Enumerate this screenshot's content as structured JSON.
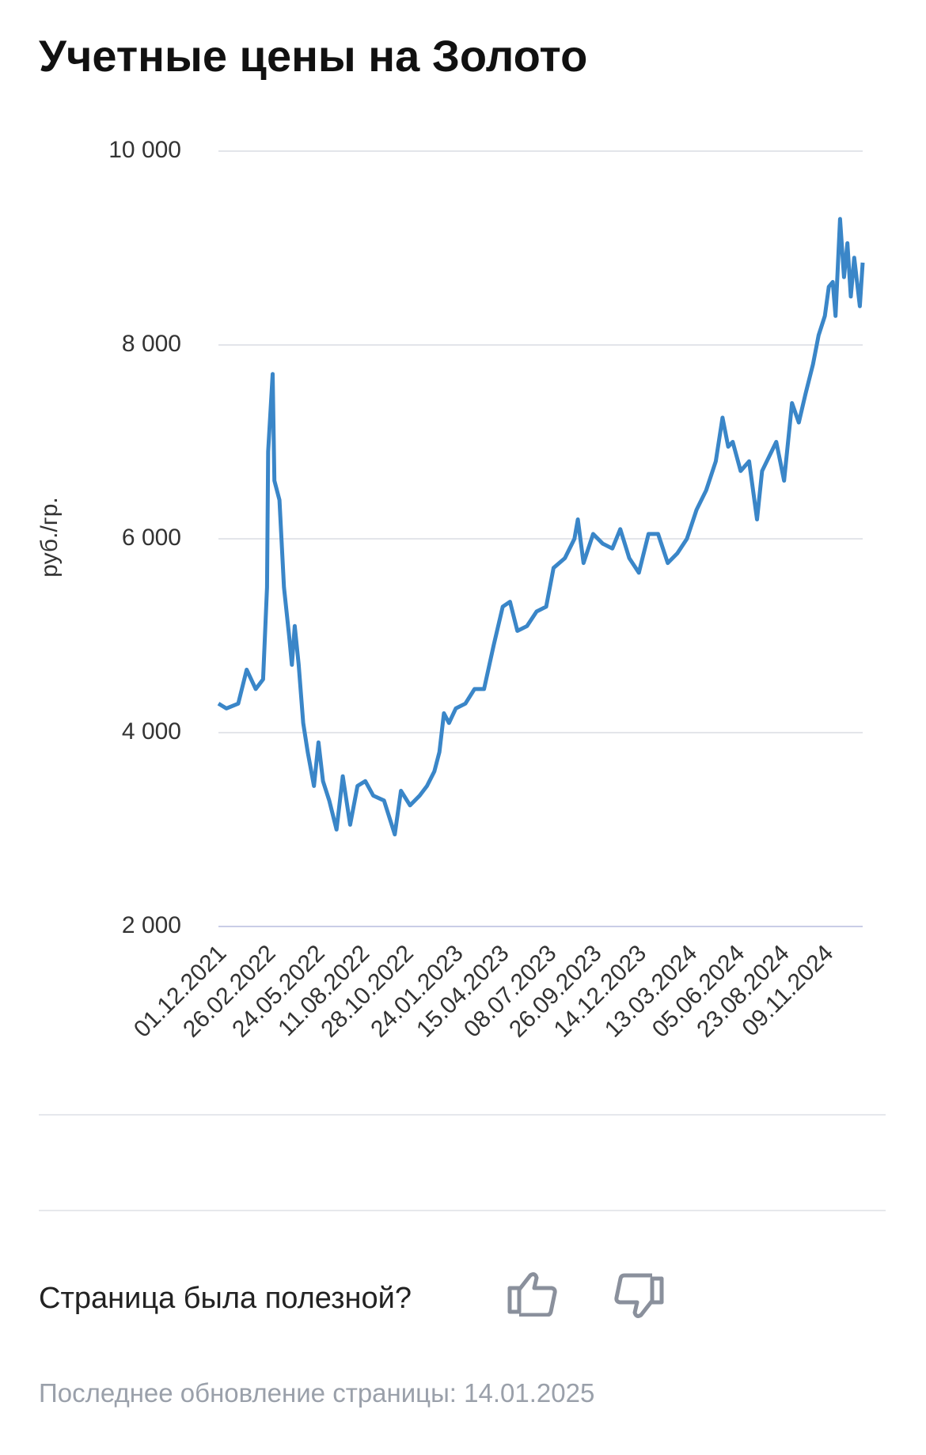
{
  "chart_data": {
    "type": "line",
    "title": "Учетные цены на Золото",
    "y_label": "руб./гр.",
    "color": "#3a86c8",
    "x": [
      "01.12.2021",
      "15.12.2021",
      "05.01.2022",
      "20.01.2022",
      "05.02.2022",
      "18.02.2022",
      "25.02.2022",
      "27.02.2022",
      "07.03.2022",
      "10.03.2022",
      "19.03.2022",
      "27.03.2022",
      "05.04.2022",
      "10.04.2022",
      "15.04.2022",
      "22.04.2022",
      "30.04.2022",
      "08.05.2022",
      "19.05.2022",
      "27.05.2022",
      "04.06.2022",
      "15.06.2022",
      "28.06.2022",
      "09.07.2022",
      "22.07.2022",
      "04.08.2022",
      "18.08.2022",
      "01.09.2022",
      "20.09.2022",
      "09.10.2022",
      "20.10.2022",
      "05.11.2022",
      "22.11.2022",
      "05.12.2022",
      "18.12.2022",
      "27.12.2022",
      "04.01.2023",
      "13.01.2023",
      "25.01.2023",
      "11.02.2023",
      "27.02.2023",
      "16.03.2023",
      "02.04.2023",
      "18.04.2023",
      "01.05.2023",
      "14.05.2023",
      "31.05.2023",
      "17.06.2023",
      "04.07.2023",
      "17.07.2023",
      "06.08.2023",
      "23.08.2023",
      "29.08.2023",
      "08.09.2023",
      "25.09.2023",
      "12.10.2023",
      "29.10.2023",
      "12.11.2023",
      "28.11.2023",
      "15.12.2023",
      "01.01.2024",
      "18.01.2024",
      "04.02.2024",
      "21.02.2024",
      "09.03.2024",
      "26.03.2024",
      "12.04.2024",
      "29.04.2024",
      "11.05.2024",
      "21.05.2024",
      "29.05.2024",
      "12.06.2024",
      "27.06.2024",
      "11.07.2024",
      "20.07.2024",
      "14.08.2024",
      "28.08.2024",
      "11.09.2024",
      "23.09.2024",
      "05.10.2024",
      "18.10.2024",
      "28.10.2024",
      "08.11.2024",
      "15.11.2024",
      "22.11.2024",
      "27.11.2024",
      "05.12.2024",
      "12.12.2024",
      "18.12.2024",
      "24.12.2024",
      "30.12.2024",
      "09.01.2025",
      "14.01.2025"
    ],
    "values": [
      4300,
      4250,
      4300,
      4650,
      4450,
      4550,
      5500,
      6900,
      7700,
      6600,
      6400,
      5500,
      5000,
      4700,
      5100,
      4700,
      4100,
      3800,
      3450,
      3900,
      3500,
      3300,
      3000,
      3550,
      3050,
      3450,
      3500,
      3350,
      3300,
      2950,
      3400,
      3250,
      3350,
      3450,
      3600,
      3800,
      4200,
      4100,
      4250,
      4300,
      4450,
      4450,
      4900,
      5300,
      5350,
      5050,
      5100,
      5250,
      5300,
      5700,
      5800,
      6000,
      6200,
      5750,
      6050,
      5950,
      5900,
      6100,
      5800,
      5650,
      6050,
      6050,
      5750,
      5850,
      6000,
      6300,
      6500,
      6800,
      7250,
      6950,
      7000,
      6700,
      6800,
      6200,
      6700,
      7000,
      6600,
      7400,
      7200,
      7500,
      7800,
      8100,
      8300,
      8600,
      8650,
      8300,
      9300,
      8700,
      9050,
      8500,
      8900,
      8400,
      8850
    ],
    "xlim": [
      "01.12.2021",
      "14.01.2025"
    ],
    "xticks": [
      "01.12.2021",
      "26.02.2022",
      "24.05.2022",
      "11.08.2022",
      "28.10.2022",
      "24.01.2023",
      "15.04.2023",
      "08.07.2023",
      "26.09.2023",
      "14.12.2023",
      "13.03.2024",
      "05.06.2024",
      "23.08.2024",
      "09.11.2024"
    ],
    "ylim": [
      2000,
      10000
    ],
    "yticks": [
      {
        "value": 2000,
        "label": "2 000"
      },
      {
        "value": 4000,
        "label": "4 000"
      },
      {
        "value": 6000,
        "label": "6 000"
      },
      {
        "value": 8000,
        "label": "8 000"
      },
      {
        "value": 10000,
        "label": "10 000"
      }
    ],
    "grid": true
  },
  "feedback": {
    "question": "Страница была полезной?"
  },
  "footer": {
    "updated": "Последнее обновление страницы: 14.01.2025"
  }
}
